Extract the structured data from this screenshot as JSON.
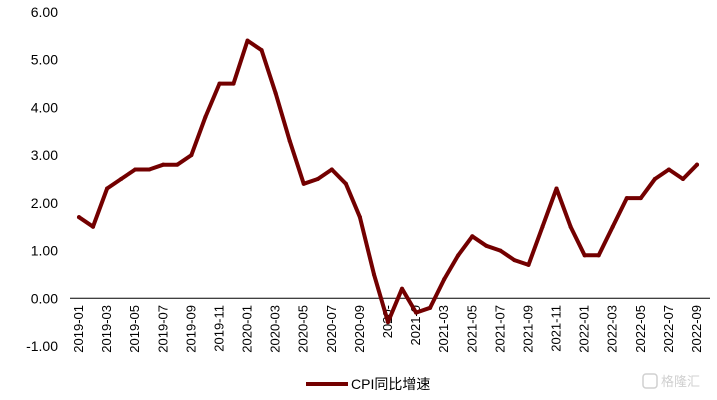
{
  "chart_data": {
    "type": "line",
    "title": "",
    "xlabel": "",
    "ylabel": "",
    "ylim": [
      -1.0,
      6.0
    ],
    "yticks": [
      "6.00",
      "5.00",
      "4.00",
      "3.00",
      "2.00",
      "1.00",
      "0.00",
      "-1.00"
    ],
    "y_tick_values": [
      6,
      5,
      4,
      3,
      2,
      1,
      0,
      -1
    ],
    "x": [
      "2019-01",
      "2019-02",
      "2019-03",
      "2019-04",
      "2019-05",
      "2019-06",
      "2019-07",
      "2019-08",
      "2019-09",
      "2019-10",
      "2019-11",
      "2019-12",
      "2020-01",
      "2020-02",
      "2020-03",
      "2020-04",
      "2020-05",
      "2020-06",
      "2020-07",
      "2020-08",
      "2020-09",
      "2020-10",
      "2020-11",
      "2020-12",
      "2021-01",
      "2021-02",
      "2021-03",
      "2021-04",
      "2021-05",
      "2021-06",
      "2021-07",
      "2021-08",
      "2021-09",
      "2021-10",
      "2021-11",
      "2021-12",
      "2022-01",
      "2022-02",
      "2022-03",
      "2022-04",
      "2022-05",
      "2022-06",
      "2022-07",
      "2022-08",
      "2022-09"
    ],
    "xtick_labels": [
      "2019-01",
      "2019-03",
      "2019-05",
      "2019-07",
      "2019-09",
      "2019-11",
      "2020-01",
      "2020-03",
      "2020-05",
      "2020-07",
      "2020-09",
      "2020-",
      "2021-0",
      "2021-03",
      "2021-05",
      "2021-07",
      "2021-09",
      "2021-11",
      "2022-01",
      "2022-03",
      "2022-05",
      "2022-07",
      "2022-09"
    ],
    "series": [
      {
        "name": "CPI同比增速",
        "color": "#730000",
        "values": [
          1.7,
          1.5,
          2.3,
          2.5,
          2.7,
          2.7,
          2.8,
          2.8,
          3.0,
          3.8,
          4.5,
          4.5,
          5.4,
          5.2,
          4.3,
          3.3,
          2.4,
          2.5,
          2.7,
          2.4,
          1.7,
          0.5,
          -0.5,
          0.2,
          -0.3,
          -0.2,
          0.4,
          0.9,
          1.3,
          1.1,
          1.0,
          0.8,
          0.7,
          1.5,
          2.3,
          1.5,
          0.9,
          0.9,
          1.5,
          2.1,
          2.1,
          2.5,
          2.7,
          2.5,
          2.8
        ]
      }
    ],
    "grid": false,
    "legend": "bottom-center"
  },
  "watermark": {
    "text": "格隆汇",
    "color": "#d0d0d0"
  }
}
